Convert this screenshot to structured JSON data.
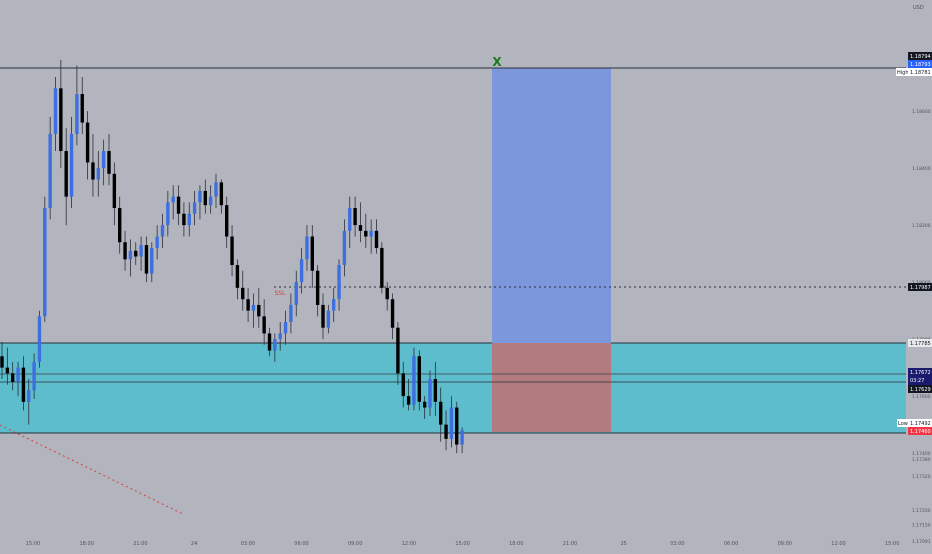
{
  "currency": "USD",
  "price_axis": {
    "ticks": [
      "1.18800",
      "1.18600",
      "1.18400",
      "1.18200",
      "1.18000",
      "1.17800",
      "1.17600",
      "1.17400",
      "1.17200",
      "1.17000"
    ],
    "extra_ticks": [
      "1.17800",
      "1.17600",
      "1.17400",
      "1.17380",
      "1.17320",
      "1.17200",
      "1.17150",
      "1.17091"
    ]
  },
  "time_axis": {
    "labels": [
      "15:00",
      "18:00",
      "21:00",
      "24",
      "03:00",
      "06:00",
      "09:00",
      "12:00",
      "15:00",
      "18:00",
      "21:00",
      "25",
      "03:00",
      "06:00",
      "09:00",
      "12:00",
      "15:00"
    ]
  },
  "badges": {
    "top_black": "1.18794",
    "top_blue": "1.18793",
    "high_label": "High",
    "high_value": "1.18781",
    "level_mid": "1.17987",
    "zone_top": "1.17785",
    "last_price": "1.17672",
    "countdown": "03:27",
    "prev_close": "1.17629",
    "low_label": "Low",
    "low_value": "1.17492",
    "zone_bottom": "1.17460"
  },
  "annotations": {
    "target_marker": "X",
    "swing_label": "SSL"
  },
  "colors": {
    "background": "#b2b5be",
    "bull": "#3d6fe0",
    "bear": "#000000",
    "demand_zone": "#5dbdcc",
    "reward_box": "#7c97dc",
    "risk_box": "#b27b7f",
    "target_marker": "#1b7a1b",
    "swing_label": "#e23b3b"
  },
  "chart_data": {
    "type": "candlestick",
    "symbol_quote": "USD",
    "ylim": [
      1.1706,
      1.1899
    ],
    "candles": [
      {
        "o": 1.1774,
        "h": 1.1779,
        "l": 1.1766,
        "c": 1.177
      },
      {
        "o": 1.177,
        "h": 1.1777,
        "l": 1.1764,
        "c": 1.1768
      },
      {
        "o": 1.1768,
        "h": 1.1772,
        "l": 1.1762,
        "c": 1.1765
      },
      {
        "o": 1.1765,
        "h": 1.1772,
        "l": 1.176,
        "c": 1.177
      },
      {
        "o": 1.177,
        "h": 1.1774,
        "l": 1.1755,
        "c": 1.1758
      },
      {
        "o": 1.1758,
        "h": 1.1766,
        "l": 1.175,
        "c": 1.1762
      },
      {
        "o": 1.1762,
        "h": 1.1775,
        "l": 1.1759,
        "c": 1.1772
      },
      {
        "o": 1.1772,
        "h": 1.179,
        "l": 1.177,
        "c": 1.1788
      },
      {
        "o": 1.1788,
        "h": 1.183,
        "l": 1.1786,
        "c": 1.1826
      },
      {
        "o": 1.1826,
        "h": 1.1858,
        "l": 1.1822,
        "c": 1.1852
      },
      {
        "o": 1.1852,
        "h": 1.1872,
        "l": 1.1846,
        "c": 1.1868
      },
      {
        "o": 1.1868,
        "h": 1.1878,
        "l": 1.184,
        "c": 1.1846
      },
      {
        "o": 1.1846,
        "h": 1.1854,
        "l": 1.182,
        "c": 1.183
      },
      {
        "o": 1.183,
        "h": 1.1858,
        "l": 1.1826,
        "c": 1.1852
      },
      {
        "o": 1.1852,
        "h": 1.1876,
        "l": 1.1848,
        "c": 1.1866
      },
      {
        "o": 1.1866,
        "h": 1.1872,
        "l": 1.1852,
        "c": 1.1856
      },
      {
        "o": 1.1856,
        "h": 1.186,
        "l": 1.1836,
        "c": 1.1842
      },
      {
        "o": 1.1842,
        "h": 1.1852,
        "l": 1.183,
        "c": 1.1836
      },
      {
        "o": 1.1836,
        "h": 1.1846,
        "l": 1.183,
        "c": 1.184
      },
      {
        "o": 1.184,
        "h": 1.185,
        "l": 1.1834,
        "c": 1.1846
      },
      {
        "o": 1.1846,
        "h": 1.1852,
        "l": 1.1834,
        "c": 1.1838
      },
      {
        "o": 1.1838,
        "h": 1.1842,
        "l": 1.182,
        "c": 1.1826
      },
      {
        "o": 1.1826,
        "h": 1.183,
        "l": 1.181,
        "c": 1.1814
      },
      {
        "o": 1.1814,
        "h": 1.1818,
        "l": 1.1804,
        "c": 1.1808
      },
      {
        "o": 1.1808,
        "h": 1.1815,
        "l": 1.1802,
        "c": 1.1811
      },
      {
        "o": 1.1811,
        "h": 1.1814,
        "l": 1.1806,
        "c": 1.1809
      },
      {
        "o": 1.1809,
        "h": 1.1816,
        "l": 1.1804,
        "c": 1.1813
      },
      {
        "o": 1.1813,
        "h": 1.1816,
        "l": 1.18,
        "c": 1.1803
      },
      {
        "o": 1.1803,
        "h": 1.1814,
        "l": 1.18,
        "c": 1.1812
      },
      {
        "o": 1.1812,
        "h": 1.182,
        "l": 1.1808,
        "c": 1.1816
      },
      {
        "o": 1.1816,
        "h": 1.1824,
        "l": 1.1812,
        "c": 1.182
      },
      {
        "o": 1.182,
        "h": 1.1832,
        "l": 1.1816,
        "c": 1.1828
      },
      {
        "o": 1.1828,
        "h": 1.1834,
        "l": 1.1822,
        "c": 1.183
      },
      {
        "o": 1.183,
        "h": 1.1834,
        "l": 1.182,
        "c": 1.1824
      },
      {
        "o": 1.1824,
        "h": 1.1828,
        "l": 1.1816,
        "c": 1.182
      },
      {
        "o": 1.182,
        "h": 1.1828,
        "l": 1.1816,
        "c": 1.1824
      },
      {
        "o": 1.1824,
        "h": 1.1832,
        "l": 1.182,
        "c": 1.1828
      },
      {
        "o": 1.1828,
        "h": 1.1834,
        "l": 1.1822,
        "c": 1.1832
      },
      {
        "o": 1.1832,
        "h": 1.1836,
        "l": 1.1824,
        "c": 1.1827
      },
      {
        "o": 1.1827,
        "h": 1.1834,
        "l": 1.1824,
        "c": 1.183
      },
      {
        "o": 1.183,
        "h": 1.1838,
        "l": 1.1826,
        "c": 1.1835
      },
      {
        "o": 1.1835,
        "h": 1.1836,
        "l": 1.1824,
        "c": 1.1827
      },
      {
        "o": 1.1827,
        "h": 1.183,
        "l": 1.1812,
        "c": 1.1816
      },
      {
        "o": 1.1816,
        "h": 1.182,
        "l": 1.1802,
        "c": 1.1806
      },
      {
        "o": 1.1806,
        "h": 1.1808,
        "l": 1.1794,
        "c": 1.1798
      },
      {
        "o": 1.1798,
        "h": 1.1804,
        "l": 1.179,
        "c": 1.1794
      },
      {
        "o": 1.1794,
        "h": 1.1798,
        "l": 1.1786,
        "c": 1.179
      },
      {
        "o": 1.179,
        "h": 1.1796,
        "l": 1.1784,
        "c": 1.1792
      },
      {
        "o": 1.1792,
        "h": 1.1798,
        "l": 1.1784,
        "c": 1.1788
      },
      {
        "o": 1.1788,
        "h": 1.1794,
        "l": 1.1778,
        "c": 1.1782
      },
      {
        "o": 1.1782,
        "h": 1.1784,
        "l": 1.1774,
        "c": 1.1776
      },
      {
        "o": 1.1776,
        "h": 1.1782,
        "l": 1.1772,
        "c": 1.178
      },
      {
        "o": 1.178,
        "h": 1.1786,
        "l": 1.1776,
        "c": 1.1782
      },
      {
        "o": 1.1782,
        "h": 1.179,
        "l": 1.1778,
        "c": 1.1786
      },
      {
        "o": 1.1786,
        "h": 1.1796,
        "l": 1.1782,
        "c": 1.1792
      },
      {
        "o": 1.1792,
        "h": 1.1804,
        "l": 1.1788,
        "c": 1.18
      },
      {
        "o": 1.18,
        "h": 1.1812,
        "l": 1.1796,
        "c": 1.1808
      },
      {
        "o": 1.1808,
        "h": 1.182,
        "l": 1.1804,
        "c": 1.1816
      },
      {
        "o": 1.1816,
        "h": 1.182,
        "l": 1.1798,
        "c": 1.1804
      },
      {
        "o": 1.1804,
        "h": 1.1806,
        "l": 1.1788,
        "c": 1.1792
      },
      {
        "o": 1.1792,
        "h": 1.1796,
        "l": 1.178,
        "c": 1.1784
      },
      {
        "o": 1.1784,
        "h": 1.1792,
        "l": 1.1782,
        "c": 1.179
      },
      {
        "o": 1.179,
        "h": 1.1798,
        "l": 1.1786,
        "c": 1.1794
      },
      {
        "o": 1.1794,
        "h": 1.1808,
        "l": 1.179,
        "c": 1.1806
      },
      {
        "o": 1.1806,
        "h": 1.1822,
        "l": 1.1802,
        "c": 1.1818
      },
      {
        "o": 1.1818,
        "h": 1.183,
        "l": 1.1812,
        "c": 1.1826
      },
      {
        "o": 1.1826,
        "h": 1.183,
        "l": 1.1816,
        "c": 1.182
      },
      {
        "o": 1.182,
        "h": 1.1828,
        "l": 1.1814,
        "c": 1.1818
      },
      {
        "o": 1.1818,
        "h": 1.1824,
        "l": 1.1812,
        "c": 1.1816
      },
      {
        "o": 1.1816,
        "h": 1.1822,
        "l": 1.181,
        "c": 1.1818
      },
      {
        "o": 1.1818,
        "h": 1.1822,
        "l": 1.181,
        "c": 1.1812
      },
      {
        "o": 1.1812,
        "h": 1.1814,
        "l": 1.1796,
        "c": 1.1798
      },
      {
        "o": 1.1798,
        "h": 1.18,
        "l": 1.179,
        "c": 1.1794
      },
      {
        "o": 1.1794,
        "h": 1.1796,
        "l": 1.178,
        "c": 1.1784
      },
      {
        "o": 1.1784,
        "h": 1.1786,
        "l": 1.1764,
        "c": 1.1768
      },
      {
        "o": 1.1768,
        "h": 1.1772,
        "l": 1.1756,
        "c": 1.176
      },
      {
        "o": 1.176,
        "h": 1.1766,
        "l": 1.1755,
        "c": 1.1757
      },
      {
        "o": 1.1757,
        "h": 1.1777,
        "l": 1.1755,
        "c": 1.1774
      },
      {
        "o": 1.1774,
        "h": 1.1776,
        "l": 1.1755,
        "c": 1.1758
      },
      {
        "o": 1.1758,
        "h": 1.176,
        "l": 1.1752,
        "c": 1.1756
      },
      {
        "o": 1.1756,
        "h": 1.1769,
        "l": 1.1753,
        "c": 1.1766
      },
      {
        "o": 1.1766,
        "h": 1.1772,
        "l": 1.1753,
        "c": 1.1758
      },
      {
        "o": 1.1758,
        "h": 1.1763,
        "l": 1.1744,
        "c": 1.175
      },
      {
        "o": 1.175,
        "h": 1.1755,
        "l": 1.1741,
        "c": 1.1745
      },
      {
        "o": 1.1745,
        "h": 1.176,
        "l": 1.1742,
        "c": 1.1756
      },
      {
        "o": 1.1756,
        "h": 1.1758,
        "l": 1.174,
        "c": 1.1743
      },
      {
        "o": 1.1743,
        "h": 1.1749,
        "l": 1.174,
        "c": 1.1748
      }
    ],
    "levels": {
      "high": 1.18781,
      "mid_dashed": 1.17987,
      "zone_top": 1.17785,
      "last": 1.17672,
      "prev": 1.17629,
      "zone_bottom": 1.1746
    },
    "position_tool": {
      "entry": 1.17785,
      "target": 1.18781,
      "stop": 1.1746
    }
  }
}
